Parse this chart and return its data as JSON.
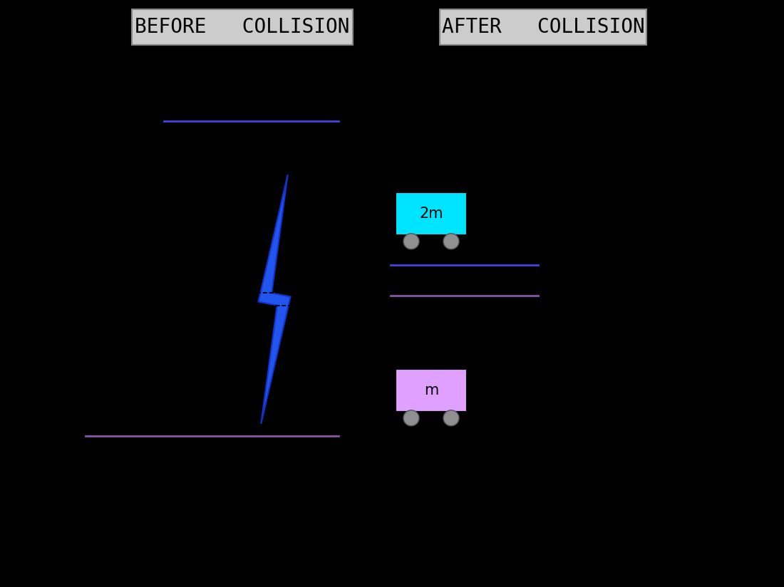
{
  "bg_color": "#000000",
  "before_label": "BEFORE   COLLISION",
  "after_label": "AFTER   COLLISION",
  "label_box_color": "#cccccc",
  "label_text_color": "#000000",
  "label_fontsize": 20,
  "cart_2m_color": "#00e5ff",
  "cart_m_color": "#e0a0ff",
  "wheel_color": "#909090",
  "cart_label_fontsize": 15,
  "blue_color": "#4444dd",
  "purple_color": "#8855aa",
  "lightning_color": "#2255ee",
  "line_lw": 2.0
}
